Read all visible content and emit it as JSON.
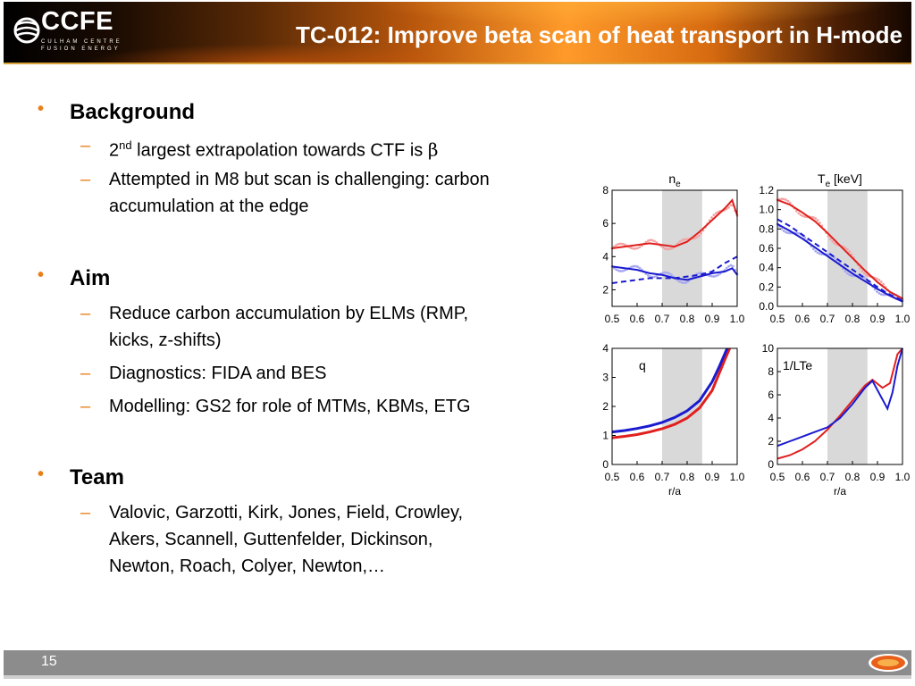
{
  "header": {
    "logo_text": "CCFE",
    "logo_sub1": "CULHAM CENTRE",
    "logo_sub2": "FUSION ENERGY",
    "title": "TC-012: Improve beta scan of heat transport in H-mode",
    "colors": {
      "accent": "#e8801a",
      "header_gradient_mid": "#ff9a2a"
    }
  },
  "sections": {
    "background": {
      "heading": "Background",
      "item1_pre": "2",
      "item1_sup": "nd",
      "item1_post": " largest extrapolation towards CTF is ",
      "item1_symbol": "β",
      "item2_line1": "Attempted in M8 but scan is challenging: carbon",
      "item2_line2": "accumulation at the edge"
    },
    "aim": {
      "heading": "Aim",
      "item1_line1": "Reduce carbon accumulation by ELMs (RMP,",
      "item1_line2": "kicks, z-shifts)",
      "item2": "Diagnostics: FIDA and BES",
      "item3": "Modelling: GS2 for role of MTMs, KBMs, ETG"
    },
    "team": {
      "heading": "Team",
      "line1": "Valovic, Garzotti, Kirk, Jones, Field, Crowley,",
      "line2": "Akers, Scannell, Guttenfelder, Dickinson,",
      "line3": "Newton, Roach, Colyer, Newton,…"
    }
  },
  "footer": {
    "page_number": "15"
  },
  "chart_data": [
    {
      "type": "line",
      "title": "n",
      "title_sub": "e",
      "x_ticks": [
        "0.5",
        "0.6",
        "0.7",
        "0.8",
        "0.9",
        "1.0"
      ],
      "y_ticks": [
        "2",
        "4",
        "6",
        "8"
      ],
      "xlim": [
        0.5,
        1.0
      ],
      "ylim": [
        1,
        8
      ],
      "shaded_region": [
        0.7,
        0.86
      ],
      "series": [
        {
          "color": "#e0201e",
          "style": "solid",
          "x": [
            0.5,
            0.55,
            0.6,
            0.65,
            0.7,
            0.75,
            0.8,
            0.85,
            0.9,
            0.95,
            0.98,
            1.0
          ],
          "y": [
            4.5,
            4.6,
            4.7,
            4.8,
            4.7,
            4.6,
            4.9,
            5.5,
            6.2,
            6.9,
            7.4,
            6.5
          ]
        },
        {
          "color": "#1a1ad0",
          "style": "solid",
          "x": [
            0.5,
            0.55,
            0.6,
            0.65,
            0.7,
            0.75,
            0.8,
            0.85,
            0.9,
            0.95,
            0.98,
            1.0
          ],
          "y": [
            3.4,
            3.3,
            3.2,
            3.0,
            2.9,
            2.7,
            2.6,
            2.8,
            3.0,
            3.1,
            3.3,
            2.9
          ]
        },
        {
          "color": "#1a1ad0",
          "style": "dashed",
          "x": [
            0.5,
            0.55,
            0.6,
            0.65,
            0.7,
            0.75,
            0.8,
            0.85,
            0.9,
            0.95,
            1.0
          ],
          "y": [
            2.4,
            2.5,
            2.6,
            2.7,
            2.7,
            2.7,
            2.8,
            2.9,
            3.1,
            3.6,
            4.0
          ]
        }
      ]
    },
    {
      "type": "line",
      "title": "T",
      "title_sub": "e",
      "title_suffix": " [keV]",
      "x_ticks": [
        "0.5",
        "0.6",
        "0.7",
        "0.8",
        "0.9",
        "1.0"
      ],
      "y_ticks": [
        "0.0",
        "0.2",
        "0.4",
        "0.6",
        "0.8",
        "1.0",
        "1.2"
      ],
      "xlim": [
        0.5,
        1.0
      ],
      "ylim": [
        0,
        1.2
      ],
      "shaded_region": [
        0.7,
        0.86
      ],
      "series": [
        {
          "color": "#e0201e",
          "style": "solid",
          "x": [
            0.5,
            0.55,
            0.6,
            0.65,
            0.7,
            0.75,
            0.8,
            0.85,
            0.9,
            0.95,
            1.0
          ],
          "y": [
            1.1,
            1.05,
            0.97,
            0.88,
            0.76,
            0.63,
            0.5,
            0.37,
            0.25,
            0.15,
            0.08
          ]
        },
        {
          "color": "#1a1ad0",
          "style": "solid",
          "x": [
            0.5,
            0.55,
            0.6,
            0.65,
            0.7,
            0.75,
            0.8,
            0.85,
            0.9,
            0.95,
            1.0
          ],
          "y": [
            0.85,
            0.78,
            0.7,
            0.61,
            0.52,
            0.43,
            0.34,
            0.26,
            0.18,
            0.11,
            0.05
          ]
        },
        {
          "color": "#1a1ad0",
          "style": "dashed",
          "x": [
            0.5,
            0.55,
            0.6,
            0.65,
            0.7,
            0.75,
            0.8,
            0.85,
            0.9,
            0.95,
            1.0
          ],
          "y": [
            0.9,
            0.83,
            0.74,
            0.65,
            0.56,
            0.47,
            0.38,
            0.29,
            0.2,
            0.12,
            0.06
          ]
        }
      ]
    },
    {
      "type": "line",
      "title": "q",
      "x_ticks": [
        "0.5",
        "0.6",
        "0.7",
        "0.8",
        "0.9",
        "1.0"
      ],
      "y_ticks": [
        "0",
        "1",
        "2",
        "3",
        "4"
      ],
      "xlabel": "r/a",
      "xlim": [
        0.5,
        1.0
      ],
      "ylim": [
        0,
        4
      ],
      "shaded_region": [
        0.7,
        0.86
      ],
      "series": [
        {
          "color": "#e0201e",
          "style": "solid",
          "x": [
            0.5,
            0.55,
            0.6,
            0.65,
            0.7,
            0.75,
            0.8,
            0.85,
            0.9,
            0.95,
            0.97
          ],
          "y": [
            0.92,
            0.97,
            1.03,
            1.12,
            1.23,
            1.38,
            1.6,
            1.95,
            2.55,
            3.6,
            4.0
          ]
        },
        {
          "color": "#1a1ad0",
          "style": "solid",
          "x": [
            0.5,
            0.55,
            0.6,
            0.65,
            0.7,
            0.75,
            0.8,
            0.85,
            0.9,
            0.93,
            0.96
          ],
          "y": [
            1.12,
            1.17,
            1.24,
            1.33,
            1.45,
            1.62,
            1.85,
            2.2,
            2.85,
            3.4,
            4.0
          ]
        }
      ]
    },
    {
      "type": "line",
      "title": "1/LTe",
      "x_ticks": [
        "0.5",
        "0.6",
        "0.7",
        "0.8",
        "0.9",
        "1.0"
      ],
      "y_ticks": [
        "0",
        "2",
        "4",
        "6",
        "8",
        "10"
      ],
      "xlabel": "r/a",
      "xlim": [
        0.5,
        1.0
      ],
      "ylim": [
        0,
        10
      ],
      "shaded_region": [
        0.7,
        0.86
      ],
      "series": [
        {
          "color": "#e0201e",
          "style": "solid",
          "x": [
            0.5,
            0.55,
            0.6,
            0.65,
            0.7,
            0.75,
            0.8,
            0.85,
            0.88,
            0.92,
            0.95,
            0.98,
            1.0
          ],
          "y": [
            0.5,
            0.8,
            1.3,
            2.0,
            3.0,
            4.2,
            5.5,
            6.8,
            7.3,
            6.6,
            7.0,
            9.5,
            10.0
          ]
        },
        {
          "color": "#1a1ad0",
          "style": "solid",
          "x": [
            0.5,
            0.55,
            0.6,
            0.65,
            0.7,
            0.75,
            0.8,
            0.85,
            0.88,
            0.92,
            0.94,
            0.96,
            0.98,
            1.0
          ],
          "y": [
            1.6,
            2.0,
            2.4,
            2.8,
            3.2,
            4.0,
            5.2,
            6.6,
            7.2,
            5.6,
            4.8,
            6.2,
            8.5,
            10.0
          ]
        }
      ]
    }
  ]
}
